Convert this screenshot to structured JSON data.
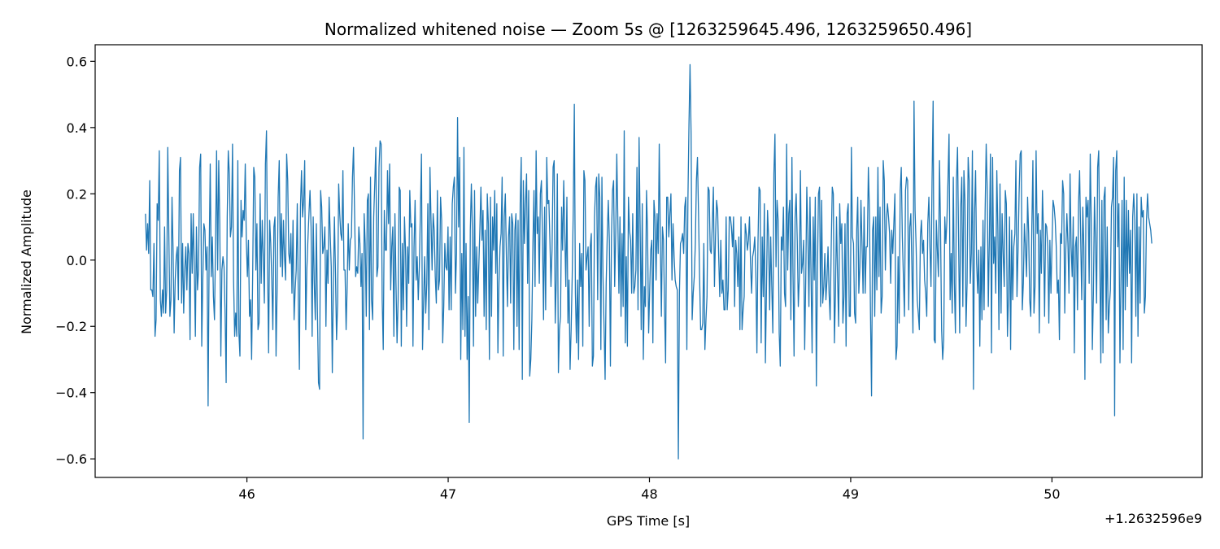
{
  "chart_data": {
    "type": "line",
    "title": "Normalized whitened noise — Zoom 5s @ [1263259645.496, 1263259650.496]",
    "xlabel": "GPS Time [s]",
    "ylabel": "Normalized Amplitude",
    "x_offset_label": "+1.2632596e9",
    "xlim": [
      45.246,
      50.746
    ],
    "ylim": [
      -0.656,
      0.65
    ],
    "xticks": [
      46,
      47,
      48,
      49,
      50
    ],
    "xtick_labels": [
      "46",
      "47",
      "48",
      "49",
      "50"
    ],
    "yticks": [
      -0.6,
      -0.4,
      -0.2,
      0.0,
      0.2,
      0.4,
      0.6
    ],
    "ytick_labels": [
      "−0.6",
      "−0.4",
      "−0.2",
      "0.0",
      "0.2",
      "0.4",
      "0.6"
    ],
    "grid": false,
    "line_color": "#1f77b4",
    "series": [
      {
        "x_start": 45.496,
        "x_end": 50.496,
        "values": [
          0.14,
          0.03,
          0.11,
          0.02,
          0.24,
          -0.09,
          -0.09,
          -0.11,
          0.05,
          -0.23,
          -0.18,
          0.17,
          0.12,
          0.33,
          -0.12,
          -0.17,
          -0.09,
          -0.16,
          0.1,
          -0.16,
          -0.09,
          0.34,
          0.08,
          -0.17,
          -0.12,
          0.19,
          0.03,
          -0.22,
          -0.06,
          0.01,
          0.04,
          -0.12,
          0.27,
          0.31,
          -0.13,
          0.05,
          -0.16,
          -0.03,
          0.04,
          -0.09,
          0.05,
          0.02,
          -0.24,
          0.14,
          -0.04,
          0.14,
          -0.02,
          -0.23,
          0.1,
          -0.09,
          -0.03,
          0.28,
          0.32,
          -0.26,
          -0.06,
          0.11,
          0.09,
          -0.03,
          0.04,
          -0.44,
          0.02,
          0.29,
          -0.05,
          0.07,
          -0.11,
          -0.18,
          0.05,
          0.33,
          -0.03,
          0.3,
          0.11,
          -0.29,
          -0.03,
          0.01,
          -0.02,
          -0.16,
          -0.37,
          0.13,
          0.33,
          0.26,
          0.07,
          0.1,
          0.35,
          -0.06,
          -0.23,
          -0.16,
          -0.23,
          0.3,
          -0.22,
          -0.29,
          0.18,
          0.07,
          0.15,
          0.12,
          0.29,
          0.06,
          -0.05,
          0.06,
          -0.17,
          -0.12,
          -0.3,
          -0.04,
          0.28,
          0.25,
          -0.03,
          0.11,
          -0.21,
          -0.19,
          0.2,
          -0.07,
          0.12,
          0.01,
          -0.13,
          0.29,
          0.39,
          -0.01,
          -0.28,
          0.12,
          0.05,
          -0.06,
          -0.21,
          0.1,
          0.13,
          -0.29,
          -0.09,
          0.19,
          0.3,
          -0.02,
          0.14,
          -0.05,
          0.12,
          0.01,
          -0.06,
          0.32,
          0.24,
          0.02,
          -0.01,
          0.08,
          -0.1,
          0.12,
          -0.18,
          -0.09,
          -0.03,
          0.17,
          -0.12,
          -0.33,
          0.16,
          0.27,
          0.13,
          0.18,
          0.3,
          -0.21,
          -0.03,
          0.06,
          0.14,
          0.21,
          0.1,
          -0.23,
          0.13,
          -0.07,
          -0.18,
          0.11,
          -0.16,
          -0.37,
          -0.39,
          0.21,
          0.16,
          0.02,
          0.04,
          0.1,
          -0.2,
          0.03,
          -0.07,
          0.19,
          0.08,
          -0.02,
          -0.34,
          -0.07,
          0.13,
          -0.04,
          -0.24,
          -0.13,
          0.23,
          0.14,
          0.08,
          0.06,
          0.27,
          -0.03,
          -0.03,
          -0.21,
          -0.08,
          0.11,
          -0.03,
          0.06,
          0.07,
          0.25,
          0.34,
          0.14,
          -0.05,
          -0.02,
          -0.04,
          0.1,
          0.05,
          -0.08,
          0.02,
          -0.54,
          0.14,
          0.05,
          -0.17,
          0.18,
          0.2,
          -0.21,
          0.25,
          -0.12,
          -0.18,
          0.13,
          0.23,
          0.34,
          -0.05,
          -0.02,
          0.28,
          0.36,
          0.35,
          -0.12,
          -0.27,
          0.15,
          0.03,
          0.03,
          0.27,
          0.11,
          0.29,
          -0.09,
          0.04,
          0.1,
          -0.23,
          0.14,
          -0.07,
          -0.25,
          -0.12,
          0.22,
          0.21,
          -0.26,
          0.05,
          -0.15,
          0.13,
          0.03,
          -0.2,
          0.04,
          -0.07,
          0.21,
          0.1,
          0.11,
          -0.26,
          0.04,
          0.18,
          -0.06,
          0.01,
          -0.12,
          -0.02,
          0.15,
          0.32,
          -0.27,
          -0.13,
          0.01,
          -0.16,
          -0.07,
          0.17,
          -0.21,
          0.28,
          0.12,
          -0.03,
          0.14,
          0.09,
          -0.05,
          -0.13,
          0.21,
          -0.09,
          -0.06,
          0.19,
          0.12,
          -0.25,
          -0.14,
          0.05,
          -0.02,
          -0.03,
          0.1,
          -0.15,
          0.07,
          -0.15,
          0.17,
          0.22,
          0.25,
          -0.1,
          0.02,
          0.43,
          0.1,
          0.31,
          -0.3,
          0.02,
          -0.21,
          0.34,
          -0.23,
          0.05,
          -0.3,
          -0.11,
          -0.49,
          0.09,
          0.23,
          0.09,
          -0.26,
          0.21,
          -0.17,
          0.04,
          -0.13,
          -0.02,
          0.09,
          0.22,
          0.06,
          0.15,
          -0.17,
          0.09,
          -0.21,
          0.2,
          0.11,
          -0.3,
          0.19,
          -0.17,
          0.13,
          0.03,
          0.21,
          -0.04,
          0.17,
          -0.28,
          -0.07,
          0.04,
          0.08,
          0.25,
          -0.29,
          0.13,
          0.2,
          0.01,
          -0.14,
          0.07,
          0.13,
          -0.13,
          0.14,
          0.11,
          -0.27,
          0.09,
          0.14,
          -0.2,
          0.12,
          -0.27,
          0.17,
          0.31,
          -0.36,
          0.24,
          0.05,
          0.17,
          0.26,
          -0.07,
          0.21,
          -0.35,
          -0.3,
          -0.18,
          0.05,
          0.21,
          -0.08,
          0.33,
          0.08,
          0.13,
          -0.07,
          0.2,
          0.24,
          0.07,
          -0.18,
          0.16,
          -0.15,
          0.31,
          0.17,
          0.18,
          0.06,
          -0.08,
          0.03,
          0.28,
          0.3,
          -0.19,
          -0.06,
          0.26,
          -0.34,
          -0.21,
          -0.17,
          0.16,
          0.03,
          0.24,
          0.08,
          -0.08,
          0.19,
          -0.19,
          -0.06,
          -0.33,
          -0.21,
          -0.05,
          0.15,
          0.47,
          -0.1,
          -0.25,
          -0.06,
          -0.3,
          0.05,
          -0.08,
          0.02,
          -0.26,
          0.27,
          0.24,
          -0.03,
          0.01,
          0.04,
          -0.2,
          0.04,
          0.08,
          -0.32,
          -0.29,
          0.13,
          0.22,
          0.25,
          -0.12,
          0.26,
          0.19,
          -0.27,
          0.25,
          -0.05,
          -0.2,
          -0.36,
          -0.07,
          0.07,
          0.18,
          0.06,
          -0.32,
          0.07,
          0.21,
          0.24,
          -0.08,
          0.08,
          0.32,
          0.12,
          -0.1,
          0.13,
          -0.17,
          0.08,
          -0.14,
          0.39,
          -0.25,
          0.01,
          -0.26,
          0.19,
          0.09,
          0.06,
          -0.1,
          0.14,
          -0.1,
          -0.08,
          -0.03,
          0.28,
          -0.15,
          0.37,
          0.1,
          -0.21,
          0.17,
          -0.3,
          -0.08,
          -0.14,
          0.21,
          0.08,
          -0.22,
          -0.09,
          0.03,
          0.06,
          -0.25,
          0.18,
          0.13,
          -0.06,
          0.14,
          0.02,
          0.35,
          0.07,
          -0.17,
          0.1,
          0.06,
          -0.15,
          -0.31,
          0.19,
          0.19,
          0.07,
          0.14,
          0.2,
          -0.06,
          0.11,
          0.01,
          -0.06,
          -0.08,
          -0.09,
          -0.6,
          -0.1,
          0.05,
          0.06,
          0.08,
          0.02,
          0.16,
          0.19,
          -0.27,
          0.18,
          0.41,
          0.59,
          0.38,
          -0.18,
          -0.1,
          -0.05,
          0.05,
          0.24,
          0.31,
          0.14,
          -0.05,
          -0.21,
          -0.21,
          -0.19,
          0.05,
          -0.27,
          -0.18,
          -0.11,
          0.22,
          0.21,
          0.03,
          0.02,
          0.11,
          0.22,
          -0.08,
          0.07,
          0.18,
          0.15,
          0.01,
          -0.11,
          0.06,
          -0.1,
          -0.06,
          -0.15,
          -0.15,
          0.13,
          -0.15,
          -0.09,
          0.13,
          0.13,
          0.1,
          0.04,
          0.13,
          -0.14,
          0.06,
          0.02,
          -0.08,
          0.07,
          -0.21,
          0.13,
          -0.21,
          -0.15,
          -0.11,
          0.11,
          0.08,
          0.03,
          0.06,
          0.13,
          -0.01,
          -0.1,
          0.01,
          0.03,
          0.07,
          -0.04,
          -0.28,
          0.05,
          0.22,
          0.21,
          -0.25,
          0.07,
          -0.11,
          0.17,
          -0.31,
          -0.09,
          0.15,
          0.07,
          -0.15,
          0.07,
          -0.08,
          -0.22,
          0.26,
          0.38,
          -0.02,
          0.18,
          0.12,
          -0.22,
          -0.32,
          0.07,
          0.03,
          0.16,
          -0.1,
          -0.14,
          0.35,
          -0.03,
          0.14,
          0.18,
          -0.18,
          0.31,
          -0.04,
          -0.29,
          0.13,
          0.2,
          0.06,
          -0.14,
          -0.05,
          0.27,
          -0.04,
          -0.01,
          0.06,
          -0.27,
          -0.06,
          0.22,
          0.08,
          -0.14,
          0.19,
          -0.05,
          -0.28,
          0.13,
          -0.06,
          0.19,
          -0.38,
          -0.04,
          0.2,
          0.22,
          -0.14,
          0.18,
          -0.13,
          -0.08,
          0.02,
          -0.12,
          -0.06,
          0.04,
          -0.1,
          -0.18,
          0.04,
          0.22,
          0.2,
          -0.25,
          -0.1,
          0.13,
          -0.05,
          -0.2,
          0.17,
          0.05,
          0.11,
          -0.19,
          -0.11,
          0.11,
          -0.26,
          0.14,
          0.17,
          -0.17,
          -0.17,
          0.34,
          0.07,
          0.05,
          -0.16,
          -0.19,
          0.09,
          0.19,
          -0.1,
          -0.02,
          0.18,
          0.05,
          -0.1,
          0.16,
          -0.1,
          0.04,
          0.04,
          0.28,
          0.15,
          -0.16,
          -0.41,
          0.09,
          0.13,
          -0.17,
          0.13,
          -0.09,
          0.28,
          -0.05,
          0.16,
          -0.16,
          -0.11,
          0.3,
          0.24,
          -0.03,
          0.12,
          0.17,
          0.13,
          0.08,
          -0.07,
          0.09,
          0.02,
          0.11,
          0.2,
          -0.3,
          -0.26,
          0.01,
          -0.19,
          0.21,
          0.28,
          0.07,
          -0.05,
          -0.17,
          0.21,
          0.25,
          0.24,
          -0.15,
          0.1,
          0.14,
          -0.02,
          -0.22,
          0.48,
          0.15,
          0.04,
          -0.12,
          -0.16,
          -0.21,
          0.07,
          0.12,
          0.02,
          0.06,
          -0.06,
          -0.1,
          -0.17,
          0.11,
          0.19,
          0.04,
          -0.08,
          0.24,
          0.48,
          -0.24,
          -0.25,
          0.12,
          0.03,
          -0.05,
          0.3,
          0.09,
          -0.21,
          -0.3,
          -0.24,
          0.13,
          0.05,
          0.12,
          0.24,
          0.38,
          -0.12,
          0.02,
          -0.16,
          0.25,
          -0.07,
          -0.22,
          0.24,
          0.34,
          0.06,
          -0.22,
          0.16,
          0.25,
          -0.14,
          0.27,
          0.18,
          -0.2,
          -0.07,
          0.31,
          0.24,
          -0.07,
          0.02,
          0.33,
          -0.39,
          0.14,
          0.27,
          -0.01,
          -0.1,
          0.03,
          -0.26,
          0.04,
          -0.18,
          0.12,
          -0.15,
          0.15,
          0.35,
          0.21,
          -0.14,
          0.07,
          0.32,
          -0.28,
          0.31,
          -0.01,
          0.07,
          -0.1,
          0.27,
          0.09,
          -0.21,
          0.23,
          -0.16,
          0.14,
          0.02,
          -0.08,
          0.21,
          0.17,
          -0.23,
          -0.11,
          0.13,
          -0.27,
          0.09,
          -0.12,
          0.04,
          0.08,
          0.3,
          -0.11,
          0.03,
          0.2,
          0.32,
          0.33,
          -0.15,
          -0.07,
          0.11,
          0.04,
          -0.05,
          0.19,
          0.08,
          -0.12,
          -0.17,
          0.1,
          0.3,
          -0.16,
          -0.08,
          0.33,
          0.08,
          0.14,
          -0.22,
          0.09,
          -0.04,
          0.21,
          0.08,
          -0.17,
          0.11,
          0.1,
          0.04,
          -0.19,
          0.06,
          -0.1,
          0.05,
          0.18,
          0.16,
          0.12,
          0.04,
          -0.1,
          -0.06,
          -0.24,
          0.08,
          0.05,
          0.24,
          0.2,
          -0.16,
          0.03,
          0.14,
          0.05,
          -0.1,
          0.26,
          0.04,
          -0.05,
          0.13,
          -0.28,
          0.04,
          0.07,
          -0.15,
          0.17,
          0.27,
          0.07,
          -0.12,
          0.16,
          0.04,
          -0.36,
          0.19,
          0.13,
          0.18,
          -0.07,
          0.32,
          0.11,
          -0.27,
          -0.1,
          0.19,
          0.05,
          -0.13,
          0.28,
          0.33,
          0.02,
          -0.31,
          0.18,
          -0.28,
          0.19,
          0.22,
          -0.18,
          0.1,
          -0.22,
          -0.14,
          -0.09,
          0.16,
          0.19,
          0.31,
          -0.47,
          0.27,
          0.33,
          0.04,
          0.17,
          -0.31,
          -0.05,
          0.18,
          -0.27,
          0.25,
          -0.15,
          0.18,
          -0.08,
          0.15,
          -0.04,
          0.09,
          -0.31,
          0.13,
          0.2,
          0.12,
          -0.17,
          0.2,
          -0.23,
          0.1,
          -0.13,
          0.19,
          0.13,
          0.15,
          -0.16,
          -0.11,
          0.12,
          0.2,
          0.13,
          0.11,
          0.09,
          0.05
        ]
      }
    ]
  }
}
